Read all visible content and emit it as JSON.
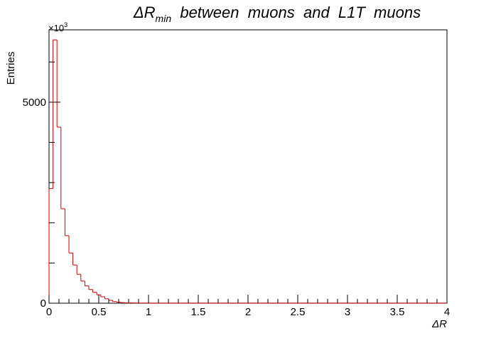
{
  "chart_data": {
    "type": "bar",
    "title": {
      "prefix": "ΔR",
      "subscript": "min",
      "suffix": "  between  muons  and  L1T  muons"
    },
    "xlabel": "ΔR",
    "ylabel": "Entries",
    "y_multiplier_label": "×10",
    "y_multiplier_exponent": "3",
    "xlim": [
      0,
      4
    ],
    "ylim": [
      0,
      6800
    ],
    "x_ticks": [
      "0",
      "0.5",
      "1",
      "1.5",
      "2",
      "2.5",
      "3",
      "3.5",
      "4"
    ],
    "y_ticks": [
      "0",
      "5000"
    ],
    "bin_width": 0.04,
    "values": [
      2850,
      6550,
      4380,
      2350,
      1680,
      1250,
      950,
      720,
      550,
      430,
      340,
      270,
      210,
      160,
      110,
      70,
      40,
      25,
      15,
      10,
      8,
      6,
      5,
      4,
      4,
      3,
      3,
      3,
      3,
      3,
      3,
      3,
      3,
      3,
      3,
      3,
      3,
      3,
      3,
      3,
      3,
      3,
      3,
      3,
      3,
      3,
      3,
      3,
      3,
      3,
      3,
      3,
      3,
      3,
      3,
      3,
      3,
      3,
      3,
      3,
      3,
      3,
      3,
      3,
      3,
      3,
      3,
      3,
      3,
      3,
      3,
      3,
      3,
      3,
      3,
      3,
      3,
      3,
      3,
      3,
      3,
      3,
      3,
      3,
      3,
      3,
      3,
      3,
      3,
      3,
      3,
      3,
      3,
      3,
      3,
      3,
      3,
      3,
      3,
      3
    ],
    "line_color": "#cc0000",
    "frame_color": "#000000",
    "grid": false,
    "legend": "none"
  }
}
